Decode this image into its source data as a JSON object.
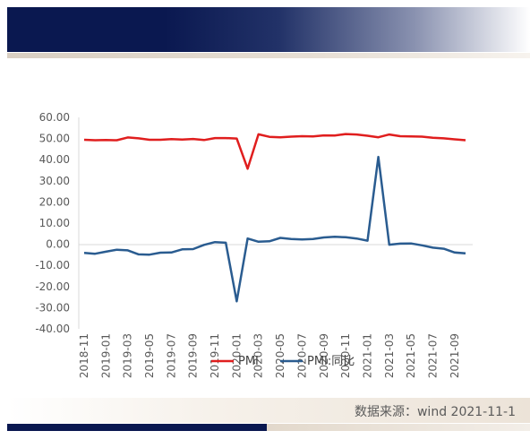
{
  "chart_data": {
    "type": "line",
    "ylim": [
      -40,
      60
    ],
    "yticks": [
      "60.00",
      "50.00",
      "40.00",
      "30.00",
      "20.00",
      "10.00",
      "0.00",
      "-10.00",
      "-20.00",
      "-30.00",
      "-40.00"
    ],
    "x": [
      "2018-11",
      "2018-12",
      "2019-01",
      "2019-02",
      "2019-03",
      "2019-04",
      "2019-05",
      "2019-06",
      "2019-07",
      "2019-08",
      "2019-09",
      "2019-10",
      "2019-11",
      "2019-12",
      "2020-01",
      "2020-02",
      "2020-03",
      "2020-04",
      "2020-05",
      "2020-06",
      "2020-07",
      "2020-08",
      "2020-09",
      "2020-10",
      "2020-11",
      "2020-12",
      "2021-01",
      "2021-02",
      "2021-03",
      "2021-04",
      "2021-05",
      "2021-06",
      "2021-07",
      "2021-08",
      "2021-09",
      "2021-10"
    ],
    "xticks": [
      "2018-11",
      "2019-01",
      "2019-03",
      "2019-05",
      "2019-07",
      "2019-09",
      "2019-11",
      "2020-01",
      "2020-03",
      "2020-05",
      "2020-07",
      "2020-09",
      "2020-11",
      "2021-01",
      "2021-03",
      "2021-05",
      "2021-07",
      "2021-09"
    ],
    "series": [
      {
        "name": "PMI",
        "color": "#e01e1e",
        "values": [
          49.4,
          49.2,
          49.3,
          49.2,
          50.5,
          50.1,
          49.4,
          49.4,
          49.7,
          49.5,
          49.8,
          49.3,
          50.2,
          50.2,
          50.0,
          35.7,
          52.0,
          50.8,
          50.6,
          50.9,
          51.1,
          51.0,
          51.5,
          51.4,
          52.1,
          51.9,
          51.3,
          50.6,
          51.9,
          51.1,
          51.0,
          50.9,
          50.4,
          50.1,
          49.6,
          49.2
        ]
      },
      {
        "name": "PMI:同比",
        "color": "#2a5c90",
        "values": [
          -4.1,
          -4.5,
          -3.5,
          -2.6,
          -2.9,
          -4.8,
          -4.9,
          -4.0,
          -3.9,
          -2.4,
          -2.3,
          -0.3,
          1.0,
          0.7,
          -27.0,
          2.7,
          1.2,
          1.4,
          3.0,
          2.5,
          2.3,
          2.5,
          3.2,
          3.5,
          3.3,
          2.7,
          1.7,
          41.3,
          -0.2,
          0.3,
          0.4,
          -0.5,
          -1.6,
          -2.1,
          -3.9,
          -4.3
        ]
      }
    ],
    "legend": "bottom",
    "grid": false
  },
  "source": "数据来源：wind 2021-11-1"
}
